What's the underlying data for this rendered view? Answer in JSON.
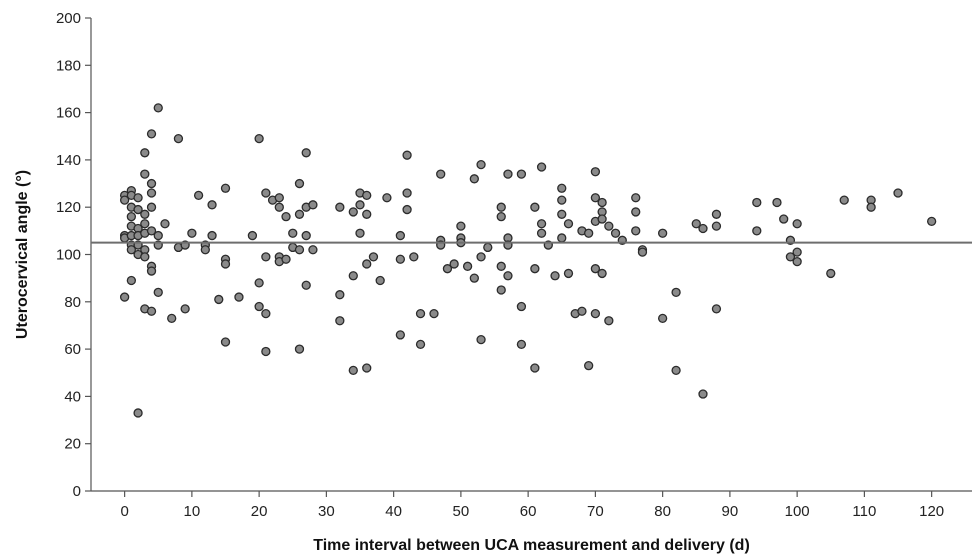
{
  "chart_data": {
    "type": "scatter",
    "title": "",
    "xlabel": "Time interval between UCA measurement and delivery (d)",
    "ylabel": "Uterocervical angle (°)",
    "xlim": [
      -5,
      126
    ],
    "ylim": [
      0,
      200
    ],
    "xticks": [
      0,
      10,
      20,
      30,
      40,
      50,
      60,
      70,
      80,
      90,
      100,
      110,
      120
    ],
    "yticks": [
      0,
      20,
      40,
      60,
      80,
      100,
      120,
      140,
      160,
      180,
      200
    ],
    "reference_line_y": 105,
    "grid": false,
    "colors": {
      "point_fill": "#8a8a8a",
      "point_stroke": "#2b2b2b",
      "reference_line": "#6e6e6e"
    },
    "points": [
      [
        0,
        125
      ],
      [
        0,
        123
      ],
      [
        0,
        108
      ],
      [
        0,
        107
      ],
      [
        0,
        82
      ],
      [
        1,
        127
      ],
      [
        1,
        125
      ],
      [
        1,
        120
      ],
      [
        1,
        116
      ],
      [
        1,
        112
      ],
      [
        1,
        108
      ],
      [
        1,
        104
      ],
      [
        1,
        102
      ],
      [
        1,
        89
      ],
      [
        2,
        124
      ],
      [
        2,
        119
      ],
      [
        2,
        111
      ],
      [
        2,
        108
      ],
      [
        2,
        104
      ],
      [
        2,
        100
      ],
      [
        2,
        33
      ],
      [
        3,
        143
      ],
      [
        3,
        134
      ],
      [
        3,
        117
      ],
      [
        3,
        113
      ],
      [
        3,
        109
      ],
      [
        3,
        102
      ],
      [
        3,
        99
      ],
      [
        3,
        77
      ],
      [
        4,
        151
      ],
      [
        4,
        130
      ],
      [
        4,
        126
      ],
      [
        4,
        120
      ],
      [
        4,
        110
      ],
      [
        4,
        95
      ],
      [
        4,
        93
      ],
      [
        4,
        76
      ],
      [
        5,
        162
      ],
      [
        5,
        108
      ],
      [
        5,
        104
      ],
      [
        5,
        84
      ],
      [
        6,
        113
      ],
      [
        7,
        73
      ],
      [
        8,
        149
      ],
      [
        8,
        103
      ],
      [
        9,
        104
      ],
      [
        9,
        77
      ],
      [
        10,
        109
      ],
      [
        11,
        125
      ],
      [
        12,
        104
      ],
      [
        12,
        102
      ],
      [
        13,
        121
      ],
      [
        13,
        108
      ],
      [
        14,
        81
      ],
      [
        15,
        128
      ],
      [
        15,
        98
      ],
      [
        15,
        96
      ],
      [
        15,
        63
      ],
      [
        17,
        82
      ],
      [
        19,
        108
      ],
      [
        20,
        149
      ],
      [
        20,
        88
      ],
      [
        20,
        78
      ],
      [
        21,
        126
      ],
      [
        21,
        99
      ],
      [
        21,
        75
      ],
      [
        21,
        59
      ],
      [
        22,
        123
      ],
      [
        23,
        124
      ],
      [
        23,
        120
      ],
      [
        23,
        99
      ],
      [
        23,
        97
      ],
      [
        24,
        116
      ],
      [
        24,
        98
      ],
      [
        25,
        109
      ],
      [
        25,
        103
      ],
      [
        26,
        130
      ],
      [
        26,
        117
      ],
      [
        26,
        102
      ],
      [
        26,
        60
      ],
      [
        27,
        143
      ],
      [
        27,
        120
      ],
      [
        27,
        108
      ],
      [
        27,
        87
      ],
      [
        28,
        121
      ],
      [
        28,
        102
      ],
      [
        32,
        120
      ],
      [
        32,
        83
      ],
      [
        32,
        72
      ],
      [
        34,
        118
      ],
      [
        34,
        91
      ],
      [
        34,
        51
      ],
      [
        35,
        126
      ],
      [
        35,
        121
      ],
      [
        35,
        109
      ],
      [
        36,
        125
      ],
      [
        36,
        117
      ],
      [
        36,
        96
      ],
      [
        36,
        52
      ],
      [
        37,
        99
      ],
      [
        38,
        89
      ],
      [
        39,
        124
      ],
      [
        41,
        108
      ],
      [
        41,
        98
      ],
      [
        41,
        66
      ],
      [
        42,
        142
      ],
      [
        42,
        126
      ],
      [
        42,
        119
      ],
      [
        43,
        99
      ],
      [
        44,
        75
      ],
      [
        44,
        62
      ],
      [
        46,
        75
      ],
      [
        47,
        134
      ],
      [
        47,
        106
      ],
      [
        47,
        104
      ],
      [
        48,
        94
      ],
      [
        49,
        96
      ],
      [
        50,
        112
      ],
      [
        50,
        107
      ],
      [
        50,
        105
      ],
      [
        51,
        95
      ],
      [
        52,
        132
      ],
      [
        52,
        90
      ],
      [
        53,
        138
      ],
      [
        53,
        99
      ],
      [
        53,
        64
      ],
      [
        54,
        103
      ],
      [
        56,
        120
      ],
      [
        56,
        116
      ],
      [
        56,
        95
      ],
      [
        56,
        85
      ],
      [
        57,
        134
      ],
      [
        57,
        107
      ],
      [
        57,
        104
      ],
      [
        57,
        91
      ],
      [
        59,
        134
      ],
      [
        59,
        78
      ],
      [
        59,
        62
      ],
      [
        61,
        120
      ],
      [
        61,
        94
      ],
      [
        61,
        52
      ],
      [
        62,
        137
      ],
      [
        62,
        113
      ],
      [
        62,
        109
      ],
      [
        63,
        104
      ],
      [
        64,
        91
      ],
      [
        65,
        128
      ],
      [
        65,
        123
      ],
      [
        65,
        117
      ],
      [
        65,
        107
      ],
      [
        66,
        113
      ],
      [
        66,
        92
      ],
      [
        67,
        75
      ],
      [
        68,
        110
      ],
      [
        68,
        76
      ],
      [
        69,
        109
      ],
      [
        69,
        53
      ],
      [
        70,
        135
      ],
      [
        70,
        124
      ],
      [
        70,
        114
      ],
      [
        70,
        94
      ],
      [
        70,
        75
      ],
      [
        71,
        122
      ],
      [
        71,
        118
      ],
      [
        71,
        115
      ],
      [
        71,
        92
      ],
      [
        72,
        112
      ],
      [
        72,
        72
      ],
      [
        73,
        109
      ],
      [
        74,
        106
      ],
      [
        76,
        124
      ],
      [
        76,
        118
      ],
      [
        76,
        110
      ],
      [
        77,
        102
      ],
      [
        77,
        101
      ],
      [
        80,
        109
      ],
      [
        80,
        73
      ],
      [
        82,
        84
      ],
      [
        82,
        51
      ],
      [
        85,
        113
      ],
      [
        86,
        111
      ],
      [
        86,
        41
      ],
      [
        88,
        117
      ],
      [
        88,
        112
      ],
      [
        88,
        77
      ],
      [
        94,
        122
      ],
      [
        94,
        110
      ],
      [
        97,
        122
      ],
      [
        98,
        115
      ],
      [
        99,
        106
      ],
      [
        99,
        99
      ],
      [
        100,
        113
      ],
      [
        100,
        101
      ],
      [
        100,
        97
      ],
      [
        105,
        92
      ],
      [
        107,
        123
      ],
      [
        111,
        123
      ],
      [
        111,
        120
      ],
      [
        115,
        126
      ],
      [
        120,
        114
      ]
    ]
  }
}
